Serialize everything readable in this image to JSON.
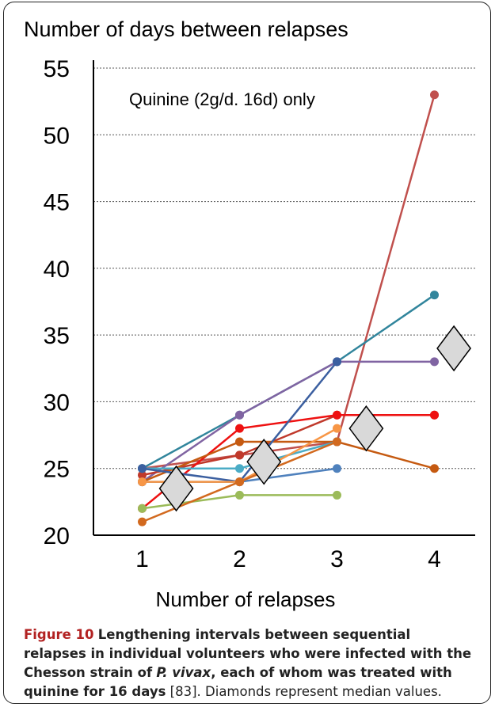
{
  "chart_data": {
    "type": "line",
    "title": "Number of days between relapses",
    "xlabel": "Number of relapses",
    "ylabel": "",
    "annotation": "Quinine (2g/d. 16d) only",
    "x": [
      1,
      2,
      3,
      4
    ],
    "xlim": [
      0.5,
      4.5
    ],
    "ylim": [
      20,
      55
    ],
    "yticks": [
      20,
      25,
      30,
      35,
      40,
      45,
      50,
      55
    ],
    "xticks": [
      1,
      2,
      3,
      4
    ],
    "grid": "horizontal-dotted",
    "series": [
      {
        "color": "#c0504d",
        "values": [
          25,
          26,
          27,
          53
        ]
      },
      {
        "color": "#31859c",
        "values": [
          25,
          29,
          33,
          38
        ]
      },
      {
        "color": "#8064a2",
        "values": [
          24,
          29,
          33,
          33
        ]
      },
      {
        "color": "#c0392b",
        "values": [
          24.5,
          26,
          29,
          29
        ]
      },
      {
        "color": "#ee1111",
        "values": [
          22,
          28,
          29,
          29
        ]
      },
      {
        "color": "#c55a11",
        "values": [
          24,
          27,
          27,
          25
        ]
      },
      {
        "color": "#4bacc6",
        "values": [
          25,
          25,
          27,
          null
        ]
      },
      {
        "color": "#4f81bd",
        "values": [
          24,
          24,
          25,
          null
        ]
      },
      {
        "color": "#3b5fa0",
        "values": [
          25,
          24,
          33,
          null
        ]
      },
      {
        "color": "#f79646",
        "values": [
          24,
          24,
          28,
          null
        ]
      },
      {
        "color": "#9bbb59",
        "values": [
          22,
          23,
          23,
          null
        ]
      },
      {
        "color": "#d2691e",
        "values": [
          21,
          24,
          27,
          null
        ]
      }
    ],
    "medians": [
      {
        "x": 1.35,
        "y": 23.5
      },
      {
        "x": 2.25,
        "y": 25.5
      },
      {
        "x": 3.3,
        "y": 28
      },
      {
        "x": 4.2,
        "y": 34
      }
    ]
  },
  "caption": {
    "lead": "Figure 10",
    "bold": "Lengthening intervals between sequential relapses in individual volunteers who were infected with the Chesson strain of",
    "italic": "P. vivax",
    "bold2": ", each of whom was treated with quinine for 16 days",
    "ref": "[83]. Diamonds represent median values."
  },
  "colors": {
    "median_fill": "#d9d9d9",
    "grid": "#555555",
    "axis": "#000000"
  }
}
